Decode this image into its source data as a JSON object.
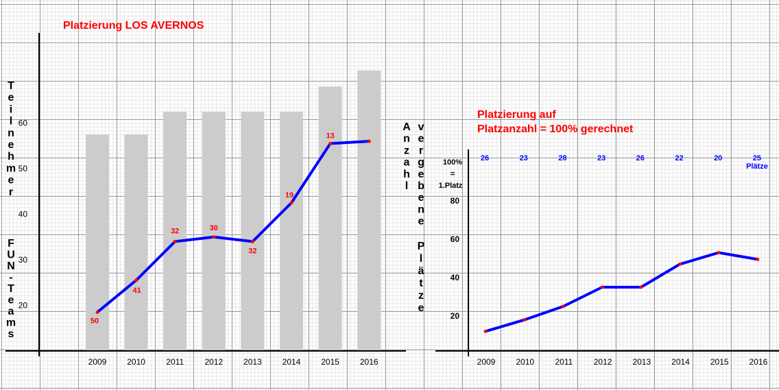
{
  "chart_data": [
    {
      "type": "bar",
      "title": "Platzierung LOS AVERNOS",
      "categories": [
        "2009",
        "2010",
        "2011",
        "2012",
        "2013",
        "2014",
        "2015",
        "2016"
      ],
      "ylabel_top": "Teilnehmer",
      "ylabel_bottom": "FUN-Teams",
      "yticks": [
        "20",
        "30",
        "40",
        "50",
        "60"
      ],
      "ylim": [
        10,
        72
      ],
      "bar_values": [
        57.5,
        57.5,
        62.5,
        62.5,
        62.5,
        62.5,
        68,
        71.5
      ],
      "line_values": [
        18.5,
        25.5,
        34,
        35,
        34,
        42.5,
        55.5,
        56
      ],
      "rank_labels": [
        "50",
        "41",
        "32",
        "30",
        "32",
        "19",
        "13",
        ""
      ],
      "bar_color": "#cccccc",
      "line_color": "#0000ff",
      "marker_color": "#ff0000"
    },
    {
      "type": "line",
      "title_line1": "Platzierung auf",
      "title_line2": "Platzanzahl = 100% gerechnet",
      "categories": [
        "2009",
        "2010",
        "2011",
        "2012",
        "2013",
        "2014",
        "2015",
        "2016"
      ],
      "ylabel_left": "Anzahl",
      "ylabel_right_1": "vergebene",
      "ylabel_right_2": "Plätze",
      "yticks": [
        "20",
        "40",
        "60",
        "80"
      ],
      "top_label_line1": "100%",
      "top_label_line2": "=",
      "top_label_line3": "1.Platz",
      "ylim": [
        0,
        100
      ],
      "values": [
        12,
        18,
        25,
        35,
        35,
        47,
        53,
        49.5
      ],
      "places": [
        "26",
        "23",
        "28",
        "23",
        "26",
        "22",
        "20",
        "25"
      ],
      "places_unit": "Plätze",
      "line_color": "#0000ff",
      "marker_color": "#ff0000"
    }
  ]
}
